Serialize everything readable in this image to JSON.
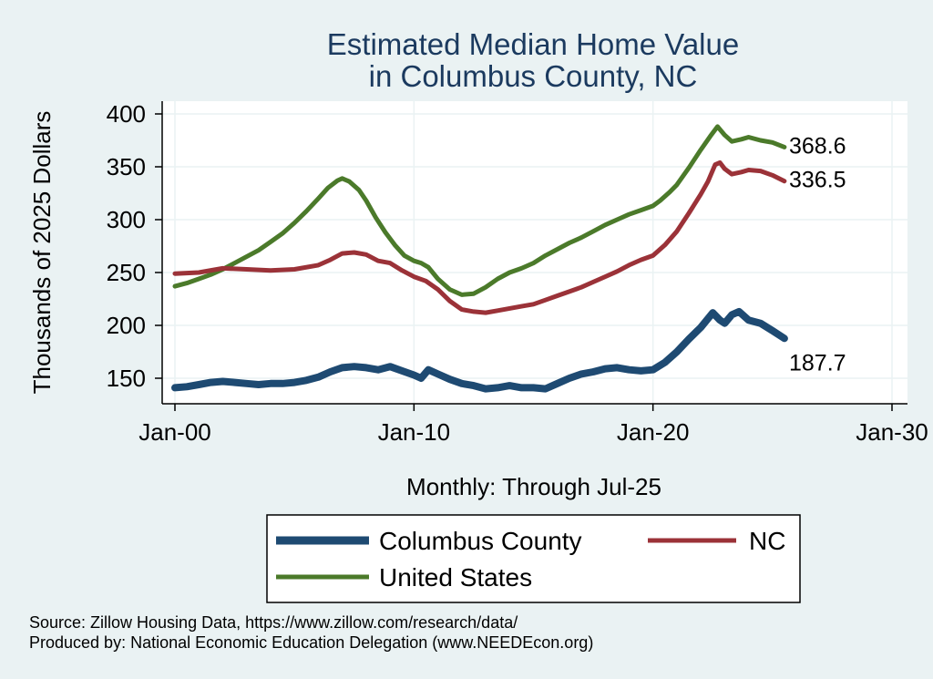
{
  "chart_data": {
    "type": "line",
    "title": "Estimated Median Home Value",
    "subtitle": "in Columbus County, NC",
    "xlabel": "Monthly: Through Jul-25",
    "ylabel": "Thousands of 2025 Dollars",
    "x_ticks": [
      {
        "label": "Jan-00",
        "year": 2000
      },
      {
        "label": "Jan-10",
        "year": 2010
      },
      {
        "label": "Jan-20",
        "year": 2020
      },
      {
        "label": "Jan-30",
        "year": 2030
      }
    ],
    "y_ticks": [
      150,
      200,
      250,
      300,
      350,
      400
    ],
    "xlim": [
      2000,
      2030
    ],
    "ylim": [
      130,
      410
    ],
    "series": [
      {
        "name": "United States",
        "color": "#4b7a2a",
        "end_label": "368.6",
        "points": [
          [
            2000.0,
            237
          ],
          [
            2000.5,
            240
          ],
          [
            2001.0,
            244
          ],
          [
            2001.5,
            248
          ],
          [
            2002.0,
            253
          ],
          [
            2002.5,
            259
          ],
          [
            2003.0,
            265
          ],
          [
            2003.5,
            271
          ],
          [
            2004.0,
            279
          ],
          [
            2004.5,
            287
          ],
          [
            2005.0,
            297
          ],
          [
            2005.5,
            308
          ],
          [
            2006.0,
            320
          ],
          [
            2006.4,
            330
          ],
          [
            2006.8,
            337
          ],
          [
            2007.0,
            339
          ],
          [
            2007.3,
            336
          ],
          [
            2007.7,
            328
          ],
          [
            2008.0,
            318
          ],
          [
            2008.4,
            302
          ],
          [
            2008.8,
            288
          ],
          [
            2009.2,
            276
          ],
          [
            2009.6,
            266
          ],
          [
            2010.0,
            261
          ],
          [
            2010.3,
            259
          ],
          [
            2010.6,
            255
          ],
          [
            2011.0,
            244
          ],
          [
            2011.5,
            234
          ],
          [
            2012.0,
            229
          ],
          [
            2012.5,
            230
          ],
          [
            2013.0,
            236
          ],
          [
            2013.5,
            244
          ],
          [
            2014.0,
            250
          ],
          [
            2014.5,
            254
          ],
          [
            2015.0,
            259
          ],
          [
            2015.5,
            266
          ],
          [
            2016.0,
            272
          ],
          [
            2016.5,
            278
          ],
          [
            2017.0,
            283
          ],
          [
            2017.5,
            289
          ],
          [
            2018.0,
            295
          ],
          [
            2018.5,
            300
          ],
          [
            2019.0,
            305
          ],
          [
            2019.5,
            309
          ],
          [
            2020.0,
            313
          ],
          [
            2020.3,
            318
          ],
          [
            2020.7,
            326
          ],
          [
            2021.0,
            333
          ],
          [
            2021.5,
            349
          ],
          [
            2022.0,
            366
          ],
          [
            2022.4,
            379
          ],
          [
            2022.7,
            388
          ],
          [
            2023.0,
            380
          ],
          [
            2023.3,
            374
          ],
          [
            2023.7,
            376
          ],
          [
            2024.0,
            378
          ],
          [
            2024.5,
            375
          ],
          [
            2025.0,
            373
          ],
          [
            2025.5,
            368.6
          ]
        ]
      },
      {
        "name": "NC",
        "color": "#9b3238",
        "end_label": "336.5",
        "points": [
          [
            2000.0,
            249
          ],
          [
            2001.0,
            250
          ],
          [
            2002.0,
            254
          ],
          [
            2003.0,
            253
          ],
          [
            2004.0,
            252
          ],
          [
            2005.0,
            253
          ],
          [
            2006.0,
            257
          ],
          [
            2006.5,
            262
          ],
          [
            2007.0,
            268
          ],
          [
            2007.5,
            269
          ],
          [
            2008.0,
            267
          ],
          [
            2008.5,
            261
          ],
          [
            2009.0,
            259
          ],
          [
            2009.5,
            252
          ],
          [
            2010.0,
            246
          ],
          [
            2010.5,
            242
          ],
          [
            2011.0,
            234
          ],
          [
            2011.5,
            223
          ],
          [
            2012.0,
            215
          ],
          [
            2012.5,
            213
          ],
          [
            2013.0,
            212
          ],
          [
            2013.5,
            214
          ],
          [
            2014.0,
            216
          ],
          [
            2014.5,
            218
          ],
          [
            2015.0,
            220
          ],
          [
            2015.5,
            224
          ],
          [
            2016.0,
            228
          ],
          [
            2016.5,
            232
          ],
          [
            2017.0,
            236
          ],
          [
            2017.5,
            241
          ],
          [
            2018.0,
            246
          ],
          [
            2018.5,
            251
          ],
          [
            2019.0,
            257
          ],
          [
            2019.5,
            262
          ],
          [
            2020.0,
            266
          ],
          [
            2020.5,
            276
          ],
          [
            2021.0,
            289
          ],
          [
            2021.5,
            306
          ],
          [
            2022.0,
            324
          ],
          [
            2022.3,
            336
          ],
          [
            2022.6,
            352
          ],
          [
            2022.8,
            354
          ],
          [
            2023.0,
            348
          ],
          [
            2023.3,
            343
          ],
          [
            2023.7,
            345
          ],
          [
            2024.0,
            347
          ],
          [
            2024.5,
            346
          ],
          [
            2025.0,
            342
          ],
          [
            2025.5,
            336.5
          ]
        ]
      },
      {
        "name": "Columbus County",
        "color": "#1e4a72",
        "end_label": "187.7",
        "points": [
          [
            2000.0,
            141
          ],
          [
            2000.5,
            142
          ],
          [
            2001.0,
            144
          ],
          [
            2001.5,
            146
          ],
          [
            2002.0,
            147
          ],
          [
            2002.5,
            146
          ],
          [
            2003.0,
            145
          ],
          [
            2003.5,
            144
          ],
          [
            2004.0,
            145
          ],
          [
            2004.5,
            145
          ],
          [
            2005.0,
            146
          ],
          [
            2005.5,
            148
          ],
          [
            2006.0,
            151
          ],
          [
            2006.5,
            156
          ],
          [
            2007.0,
            160
          ],
          [
            2007.5,
            161
          ],
          [
            2008.0,
            160
          ],
          [
            2008.5,
            158
          ],
          [
            2009.0,
            161
          ],
          [
            2009.5,
            157
          ],
          [
            2010.0,
            153
          ],
          [
            2010.3,
            150
          ],
          [
            2010.6,
            158
          ],
          [
            2011.0,
            154
          ],
          [
            2011.5,
            149
          ],
          [
            2012.0,
            145
          ],
          [
            2012.5,
            143
          ],
          [
            2013.0,
            140
          ],
          [
            2013.5,
            141
          ],
          [
            2014.0,
            143
          ],
          [
            2014.5,
            141
          ],
          [
            2015.0,
            141
          ],
          [
            2015.5,
            140
          ],
          [
            2016.0,
            145
          ],
          [
            2016.5,
            150
          ],
          [
            2017.0,
            154
          ],
          [
            2017.5,
            156
          ],
          [
            2018.0,
            159
          ],
          [
            2018.5,
            160
          ],
          [
            2019.0,
            158
          ],
          [
            2019.5,
            157
          ],
          [
            2020.0,
            158
          ],
          [
            2020.5,
            165
          ],
          [
            2021.0,
            175
          ],
          [
            2021.5,
            187
          ],
          [
            2022.0,
            198
          ],
          [
            2022.5,
            212
          ],
          [
            2022.8,
            205
          ],
          [
            2023.0,
            202
          ],
          [
            2023.3,
            210
          ],
          [
            2023.6,
            213
          ],
          [
            2024.0,
            205
          ],
          [
            2024.5,
            202
          ],
          [
            2025.0,
            195
          ],
          [
            2025.5,
            187.7
          ]
        ]
      }
    ],
    "legend": [
      {
        "name": "Columbus County",
        "color": "#1e4a72"
      },
      {
        "name": "NC",
        "color": "#9b3238"
      },
      {
        "name": "United States",
        "color": "#4b7a2a"
      }
    ],
    "notes": [
      "Source: Zillow Housing Data, https://www.zillow.com/research/data/",
      "Produced by: National Economic Education Delegation (www.NEEDEcon.org)"
    ]
  }
}
